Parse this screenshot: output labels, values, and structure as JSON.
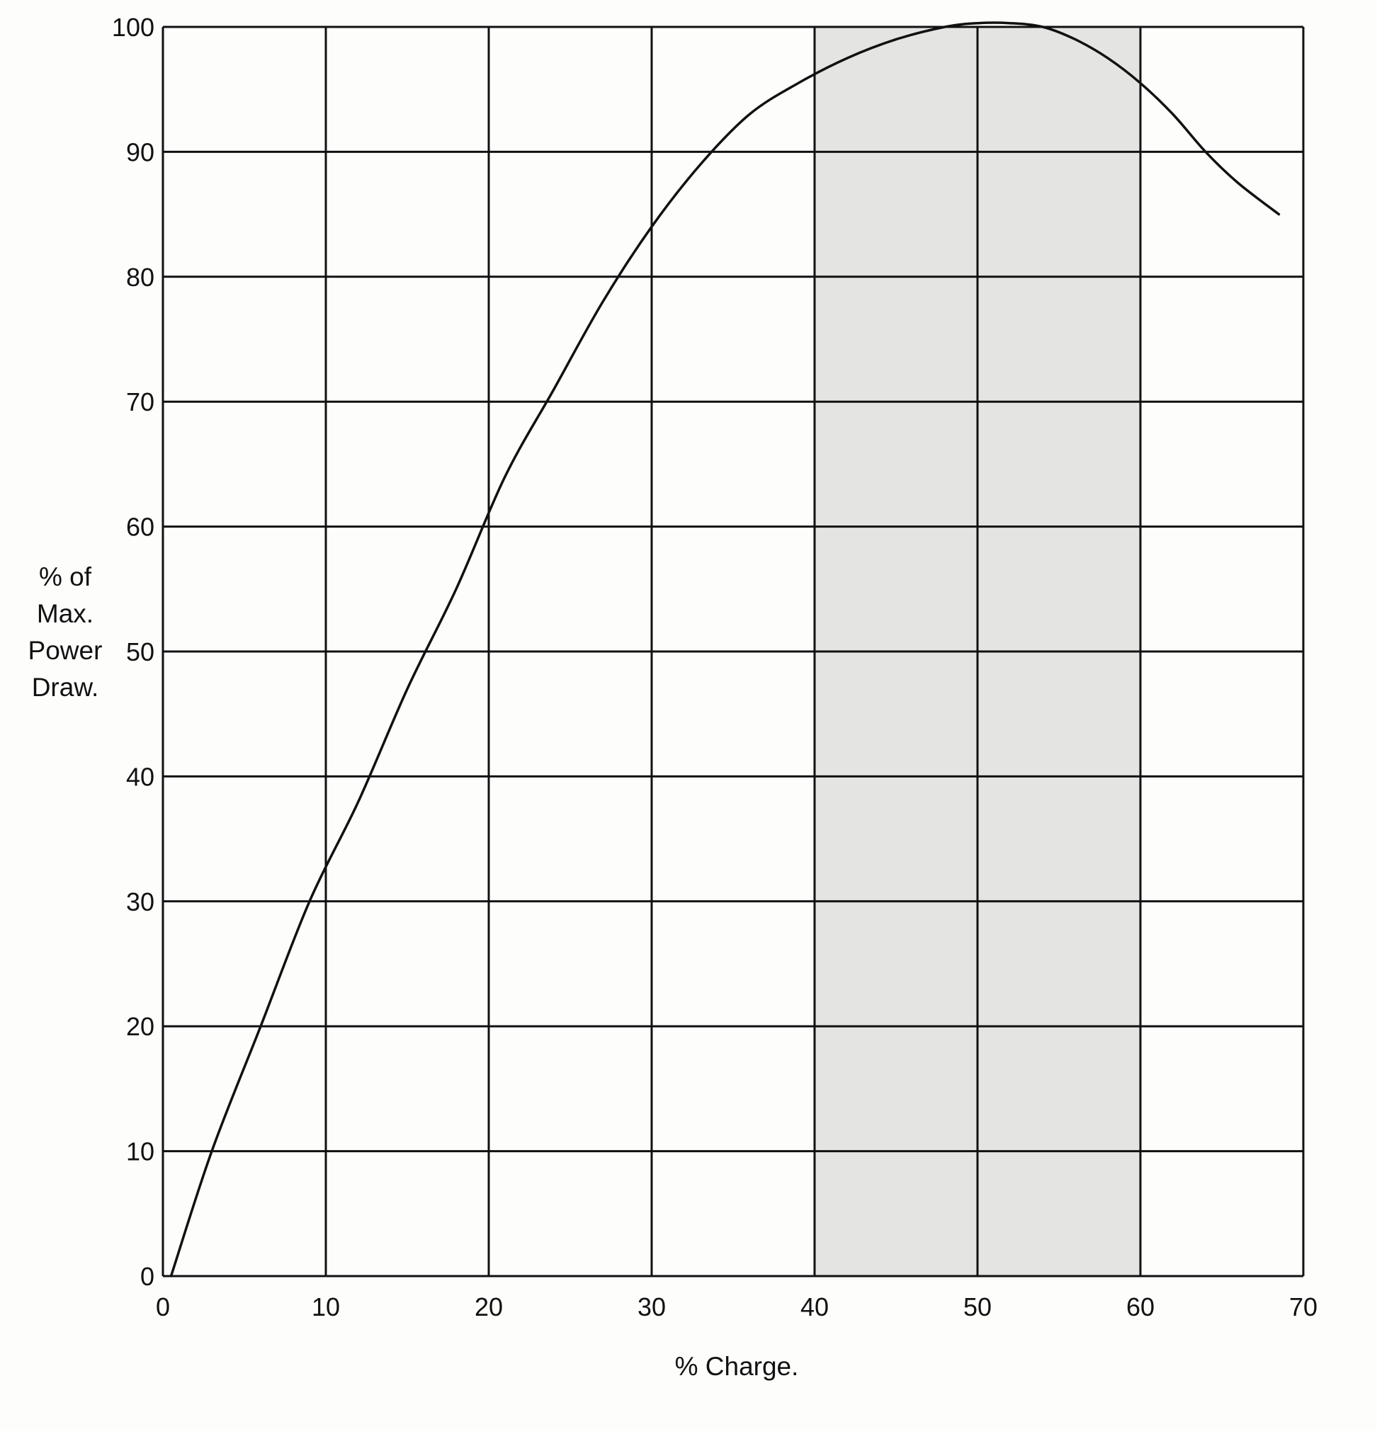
{
  "chart_data": {
    "type": "line",
    "title": "",
    "xlabel": "% Charge.",
    "ylabel_lines": [
      "% of",
      "Max.",
      "Power",
      "Draw."
    ],
    "xlim": [
      0,
      70
    ],
    "ylim": [
      0,
      100
    ],
    "x_ticks": [
      0,
      10,
      20,
      30,
      40,
      50,
      60,
      70
    ],
    "y_ticks": [
      0,
      10,
      20,
      30,
      40,
      50,
      60,
      70,
      80,
      90,
      100
    ],
    "grid": true,
    "shaded_region": {
      "x_start": 40,
      "x_end": 60
    },
    "series": [
      {
        "x": [
          0.5,
          3,
          6,
          9,
          12,
          15,
          18,
          21,
          24,
          27,
          30,
          33,
          36,
          39,
          42,
          45,
          48,
          50,
          52,
          54,
          56,
          58,
          60,
          62,
          64,
          66,
          68.5
        ],
        "y": [
          0,
          10,
          20,
          30,
          38,
          47,
          55,
          64,
          71,
          78,
          84,
          89,
          93,
          95.5,
          97.5,
          99,
          100,
          100.3,
          100.3,
          100,
          99,
          97.5,
          95.5,
          93,
          90,
          87.5,
          85
        ]
      }
    ],
    "colors": {
      "shade": "#e4e4e2",
      "line": "#111111",
      "grid": "#111111"
    }
  }
}
